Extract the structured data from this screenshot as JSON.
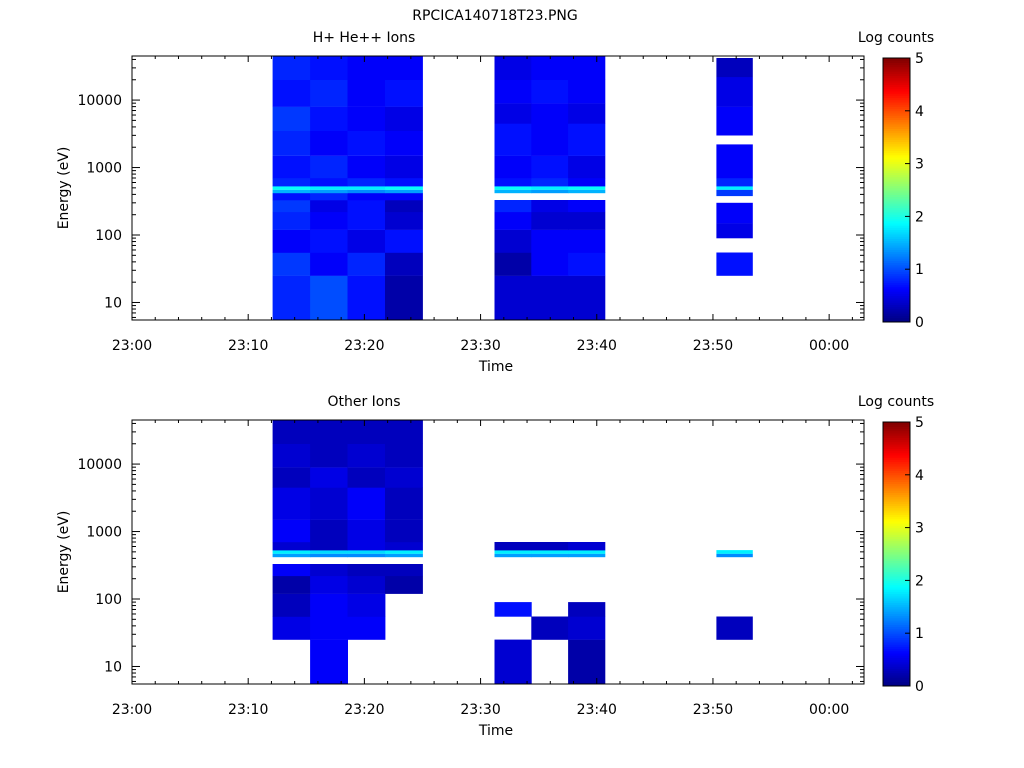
{
  "figure_title": "RPCICA140718T23.PNG",
  "colors": {
    "frame": "#000000",
    "background": "#ffffff"
  },
  "colorbar": {
    "label": "Log counts",
    "range": [
      0,
      5
    ],
    "tick_labels": [
      "0",
      "1",
      "2",
      "3",
      "4",
      "5"
    ],
    "colormap": "jet"
  },
  "chart_data": [
    {
      "type": "heatmap",
      "title": "H+ He++ Ions",
      "xlabel": "Time",
      "ylabel": "Energy (eV)",
      "x_tick_labels": [
        "23:00",
        "23:10",
        "23:20",
        "23:30",
        "23:40",
        "23:50",
        "00:00"
      ],
      "y_tick_labels": [
        "10",
        "100",
        "1000",
        "10000"
      ],
      "y_scale": "log",
      "xlim_minutes_after_2300": [
        0,
        63
      ],
      "ylim": [
        5.5,
        45000
      ],
      "blocks": [
        {
          "t_start": 12.1,
          "t_end": 25.0,
          "columns": 4,
          "rows": [
            {
              "e_low": 5.5,
              "e_high": 25,
              "values": [
                0.8,
                1.0,
                0.7,
                0.2
              ]
            },
            {
              "e_low": 25,
              "e_high": 55,
              "values": [
                0.9,
                0.6,
                0.8,
                0.3
              ]
            },
            {
              "e_low": 55,
              "e_high": 120,
              "values": [
                0.6,
                0.7,
                0.5,
                0.7
              ]
            },
            {
              "e_low": 120,
              "e_high": 220,
              "values": [
                0.8,
                0.6,
                0.7,
                0.4
              ]
            },
            {
              "e_low": 220,
              "e_high": 330,
              "values": [
                0.9,
                0.5,
                0.7,
                0.3
              ]
            },
            {
              "e_low": 330,
              "e_high": 420,
              "values": [
                0.7,
                0.8,
                0.6,
                0.6
              ]
            },
            {
              "e_low": 420,
              "e_high": 470,
              "values": [
                1.5,
                1.4,
                1.3,
                1.4
              ]
            },
            {
              "e_low": 470,
              "e_high": 530,
              "values": [
                1.9,
                1.8,
                1.8,
                1.9
              ]
            },
            {
              "e_low": 530,
              "e_high": 700,
              "values": [
                0.8,
                0.7,
                0.8,
                0.7
              ]
            },
            {
              "e_low": 700,
              "e_high": 1500,
              "values": [
                0.7,
                0.8,
                0.6,
                0.5
              ]
            },
            {
              "e_low": 1500,
              "e_high": 3500,
              "values": [
                0.8,
                0.6,
                0.7,
                0.6
              ]
            },
            {
              "e_low": 3500,
              "e_high": 8000,
              "values": [
                0.9,
                0.7,
                0.6,
                0.5
              ]
            },
            {
              "e_low": 8000,
              "e_high": 20000,
              "values": [
                0.7,
                0.8,
                0.6,
                0.7
              ]
            },
            {
              "e_low": 20000,
              "e_high": 45000,
              "values": [
                0.8,
                0.7,
                0.6,
                0.6
              ]
            }
          ]
        },
        {
          "t_start": 31.2,
          "t_end": 40.7,
          "columns": 3,
          "rows": [
            {
              "e_low": 5.5,
              "e_high": 25,
              "values": [
                0.4,
                0.4,
                0.4
              ]
            },
            {
              "e_low": 25,
              "e_high": 55,
              "values": [
                0.2,
                0.6,
                0.7
              ]
            },
            {
              "e_low": 55,
              "e_high": 120,
              "values": [
                0.4,
                0.6,
                0.6
              ]
            },
            {
              "e_low": 120,
              "e_high": 220,
              "values": [
                0.6,
                0.4,
                0.4
              ]
            },
            {
              "e_low": 220,
              "e_high": 330,
              "values": [
                0.8,
                0.5,
                0.6
              ]
            },
            {
              "e_low": 420,
              "e_high": 470,
              "values": [
                1.5,
                1.4,
                1.5
              ]
            },
            {
              "e_low": 470,
              "e_high": 530,
              "values": [
                1.9,
                1.8,
                1.9
              ]
            },
            {
              "e_low": 530,
              "e_high": 700,
              "values": [
                0.7,
                0.8,
                0.6
              ]
            },
            {
              "e_low": 700,
              "e_high": 1500,
              "values": [
                0.6,
                0.7,
                0.5
              ]
            },
            {
              "e_low": 1500,
              "e_high": 4500,
              "values": [
                0.7,
                0.6,
                0.7
              ]
            },
            {
              "e_low": 4500,
              "e_high": 9000,
              "values": [
                0.5,
                0.6,
                0.5
              ]
            },
            {
              "e_low": 9000,
              "e_high": 20000,
              "values": [
                0.6,
                0.7,
                0.6
              ]
            },
            {
              "e_low": 20000,
              "e_high": 45000,
              "values": [
                0.5,
                0.6,
                0.6
              ]
            }
          ]
        },
        {
          "t_start": 50.3,
          "t_end": 53.4,
          "columns": 1,
          "rows": [
            {
              "e_low": 25,
              "e_high": 55,
              "values": [
                0.7
              ]
            },
            {
              "e_low": 90,
              "e_high": 150,
              "values": [
                0.5
              ]
            },
            {
              "e_low": 150,
              "e_high": 300,
              "values": [
                0.6
              ]
            },
            {
              "e_low": 380,
              "e_high": 470,
              "values": [
                0.9
              ]
            },
            {
              "e_low": 470,
              "e_high": 530,
              "values": [
                1.8
              ]
            },
            {
              "e_low": 530,
              "e_high": 700,
              "values": [
                0.8
              ]
            },
            {
              "e_low": 700,
              "e_high": 2200,
              "values": [
                0.6
              ]
            },
            {
              "e_low": 3000,
              "e_high": 8000,
              "values": [
                0.6
              ]
            },
            {
              "e_low": 8000,
              "e_high": 22000,
              "values": [
                0.5
              ]
            },
            {
              "e_low": 22000,
              "e_high": 42000,
              "values": [
                0.3
              ]
            }
          ]
        }
      ]
    },
    {
      "type": "heatmap",
      "title": "Other Ions",
      "xlabel": "Time",
      "ylabel": "Energy (eV)",
      "x_tick_labels": [
        "23:00",
        "23:10",
        "23:20",
        "23:30",
        "23:40",
        "23:50",
        "00:00"
      ],
      "y_tick_labels": [
        "10",
        "100",
        "1000",
        "10000"
      ],
      "y_scale": "log",
      "xlim_minutes_after_2300": [
        0,
        63
      ],
      "ylim": [
        5.5,
        45000
      ],
      "blocks": [
        {
          "t_start": 12.1,
          "t_end": 25.0,
          "columns": 4,
          "rows": [
            {
              "e_low": 5.5,
              "e_high": 25,
              "values": [
                null,
                0.6,
                null,
                null
              ]
            },
            {
              "e_low": 25,
              "e_high": 55,
              "values": [
                0.5,
                0.6,
                0.6,
                null
              ]
            },
            {
              "e_low": 55,
              "e_high": 120,
              "values": [
                0.3,
                0.6,
                0.5,
                null
              ]
            },
            {
              "e_low": 120,
              "e_high": 220,
              "values": [
                0.2,
                0.5,
                0.4,
                0.2
              ]
            },
            {
              "e_low": 220,
              "e_high": 330,
              "values": [
                0.6,
                0.4,
                0.3,
                0.3
              ]
            },
            {
              "e_low": 420,
              "e_high": 470,
              "values": [
                1.4,
                1.3,
                1.3,
                1.4
              ]
            },
            {
              "e_low": 470,
              "e_high": 530,
              "values": [
                1.8,
                1.7,
                1.7,
                1.8
              ]
            },
            {
              "e_low": 530,
              "e_high": 700,
              "values": [
                0.4,
                0.3,
                0.5,
                0.4
              ]
            },
            {
              "e_low": 700,
              "e_high": 1500,
              "values": [
                0.6,
                0.3,
                0.5,
                0.3
              ]
            },
            {
              "e_low": 1500,
              "e_high": 4500,
              "values": [
                0.5,
                0.4,
                0.6,
                0.3
              ]
            },
            {
              "e_low": 4500,
              "e_high": 9000,
              "values": [
                0.3,
                0.5,
                0.3,
                0.4
              ]
            },
            {
              "e_low": 9000,
              "e_high": 20000,
              "values": [
                0.4,
                0.3,
                0.4,
                0.3
              ]
            },
            {
              "e_low": 20000,
              "e_high": 45000,
              "values": [
                0.3,
                0.3,
                0.3,
                0.3
              ]
            }
          ]
        },
        {
          "t_start": 31.2,
          "t_end": 40.7,
          "columns": 3,
          "rows": [
            {
              "e_low": 5.5,
              "e_high": 25,
              "values": [
                0.4,
                null,
                0.2
              ]
            },
            {
              "e_low": 25,
              "e_high": 55,
              "values": [
                null,
                0.3,
                0.4
              ]
            },
            {
              "e_low": 55,
              "e_high": 90,
              "values": [
                0.7,
                null,
                0.3
              ]
            },
            {
              "e_low": 420,
              "e_high": 470,
              "values": [
                1.4,
                1.4,
                1.4
              ]
            },
            {
              "e_low": 470,
              "e_high": 530,
              "values": [
                1.8,
                1.8,
                1.8
              ]
            },
            {
              "e_low": 530,
              "e_high": 700,
              "values": [
                0.3,
                0.3,
                0.4
              ]
            }
          ]
        },
        {
          "t_start": 50.3,
          "t_end": 53.4,
          "columns": 1,
          "rows": [
            {
              "e_low": 25,
              "e_high": 55,
              "values": [
                0.3
              ]
            },
            {
              "e_low": 420,
              "e_high": 470,
              "values": [
                1.3
              ]
            },
            {
              "e_low": 470,
              "e_high": 530,
              "values": [
                1.8
              ]
            }
          ]
        }
      ]
    }
  ]
}
